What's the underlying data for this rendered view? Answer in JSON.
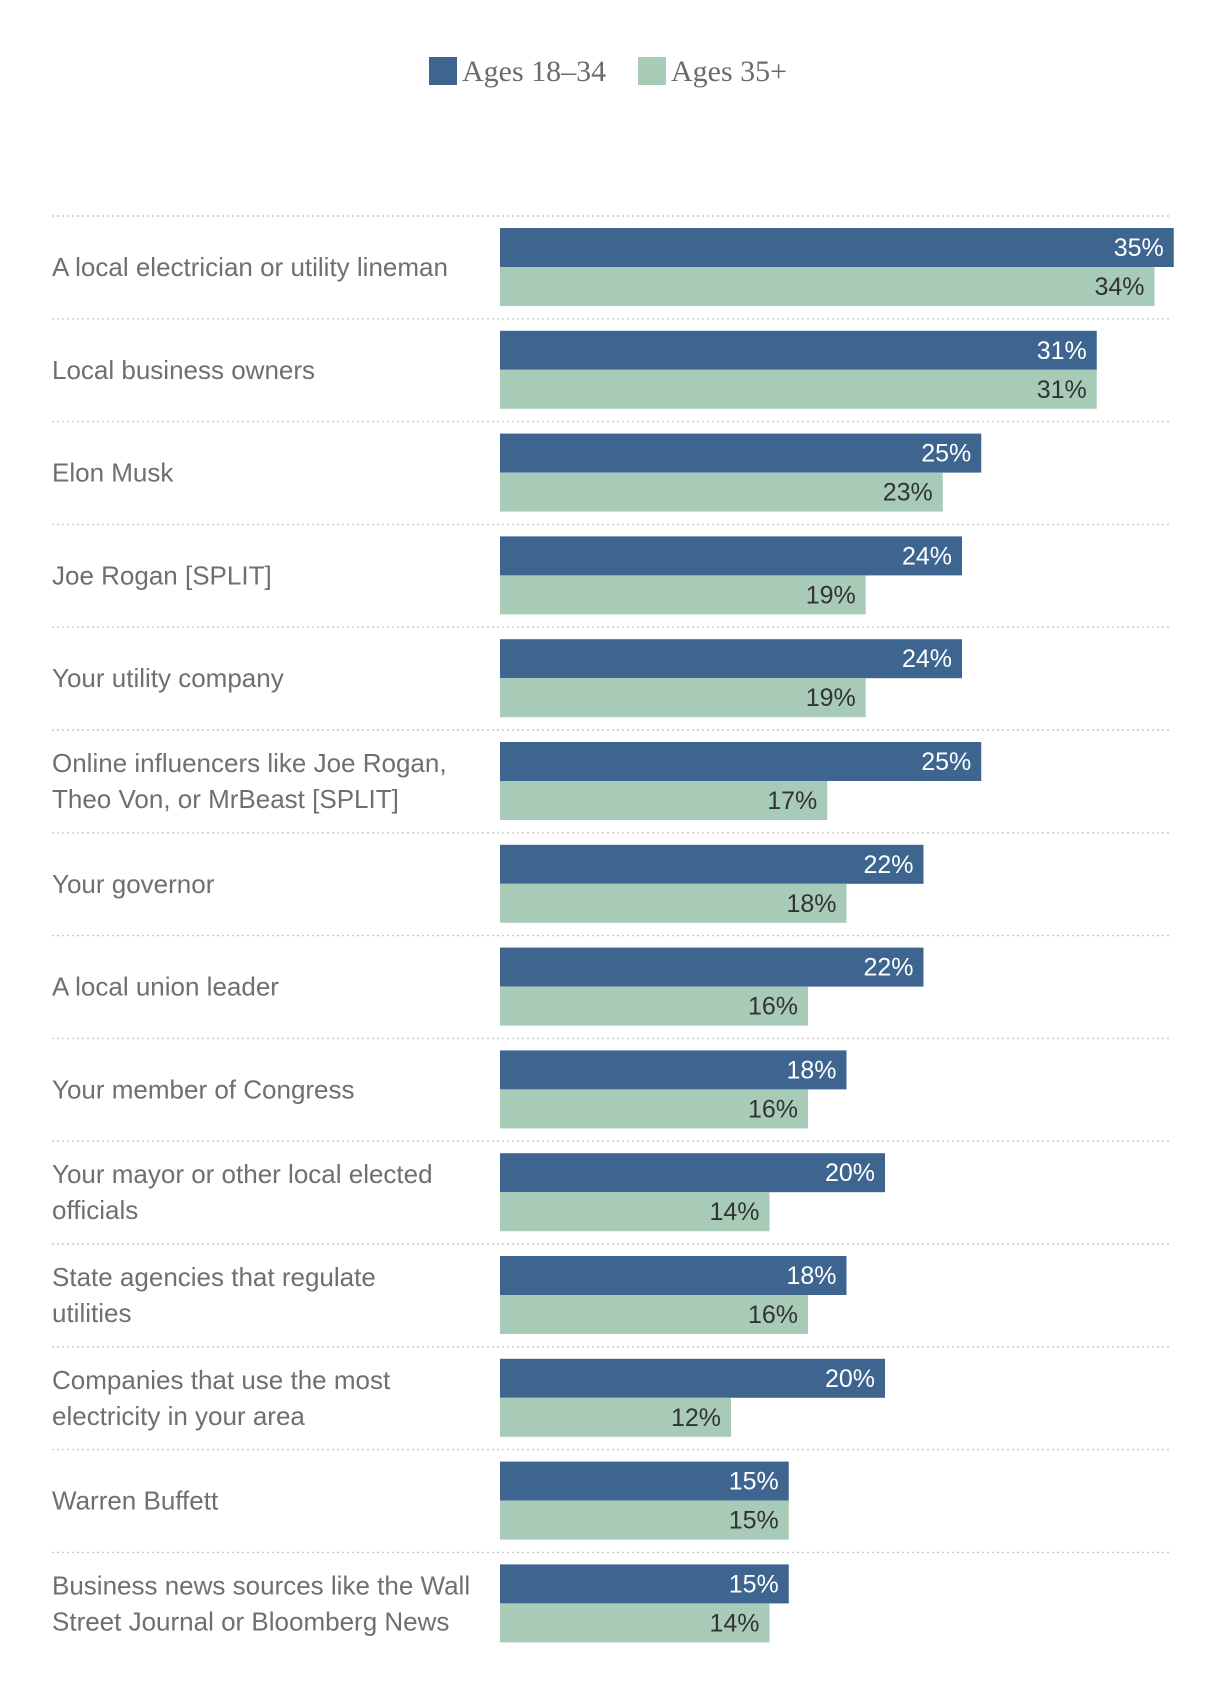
{
  "chart_data": {
    "type": "bar",
    "orientation": "horizontal",
    "title": "",
    "xlabel": "",
    "ylabel": "",
    "xlim": [
      0,
      35
    ],
    "legend_position": "top-center",
    "colors": {
      "young": "#3d6590",
      "old": "#a8cbb7"
    },
    "series": [
      {
        "key": "young",
        "name": "Ages 18–34",
        "values": [
          35,
          31,
          25,
          24,
          24,
          25,
          22,
          22,
          18,
          20,
          18,
          20,
          15,
          15
        ],
        "labels": [
          "35%",
          "31%",
          "25%",
          "24%",
          "24%",
          "25%",
          "22%",
          "22%",
          "18%",
          "20%",
          "18%",
          "20%",
          "15%",
          "15%"
        ]
      },
      {
        "key": "old",
        "name": "Ages 35+",
        "values": [
          34,
          31,
          23,
          19,
          19,
          17,
          18,
          16,
          16,
          14,
          16,
          12,
          15,
          14
        ],
        "labels": [
          "34%",
          "31%",
          "23%",
          "19%",
          "19%",
          "17%",
          "18%",
          "16%",
          "16%",
          "14%",
          "16%",
          "12%",
          "15%",
          "14%"
        ]
      }
    ],
    "categories": [
      [
        "A local electrician or utility lineman"
      ],
      [
        "Local business owners"
      ],
      [
        "Elon Musk"
      ],
      [
        "Joe Rogan [SPLIT]"
      ],
      [
        "Your utility company"
      ],
      [
        "Online influencers like Joe Rogan,",
        "Theo Von, or MrBeast [SPLIT]"
      ],
      [
        "Your governor"
      ],
      [
        "A local union leader"
      ],
      [
        "Your member of Congress"
      ],
      [
        "Your mayor or other local elected",
        "officials"
      ],
      [
        "State agencies that regulate",
        "utilities"
      ],
      [
        "Companies that use the most",
        "electricity in your area"
      ],
      [
        "Warren Buffett"
      ],
      [
        "Business news sources like the Wall",
        "Street Journal or Bloomberg News"
      ]
    ]
  }
}
